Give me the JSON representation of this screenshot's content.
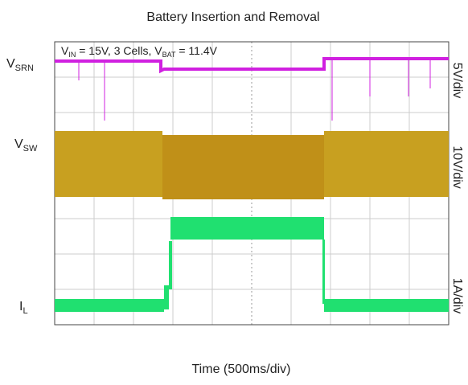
{
  "chart_data": {
    "type": "oscilloscope",
    "title": "Battery Insertion and Removal",
    "x_label": "Time (500ms/div)",
    "annotation": [
      "V",
      "IN",
      " = 15V, 3 Cells, ",
      "V",
      "BAT",
      " = 11.4V"
    ],
    "traces": [
      {
        "label": "V",
        "sub": "SRN",
        "scale": "5V/div",
        "color": "#d020e0"
      },
      {
        "label": "V",
        "sub": "SW",
        "scale": "10V/div",
        "color": "#c8a020"
      },
      {
        "label": "I",
        "sub": "L",
        "scale": "1A/div",
        "color": "#20e070"
      }
    ]
  }
}
